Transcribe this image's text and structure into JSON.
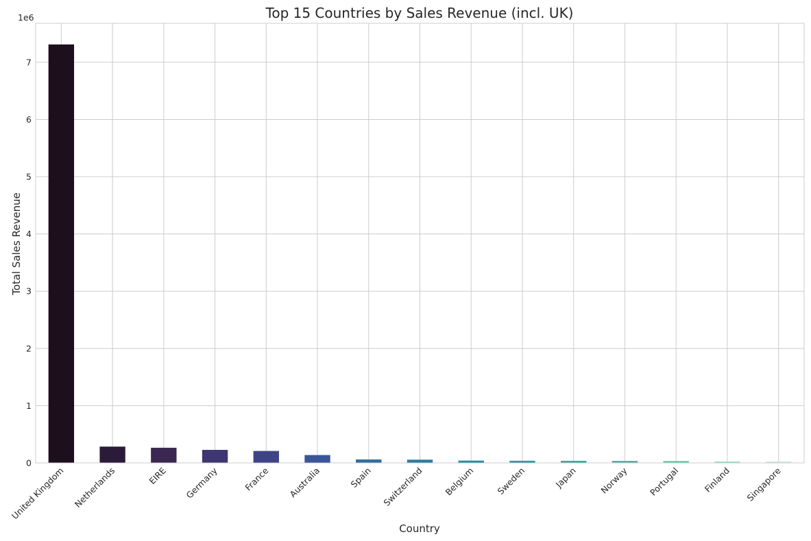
{
  "chart_data": {
    "type": "bar",
    "title": "Top 15 Countries by Sales Revenue (incl. UK)",
    "xlabel": "Country",
    "ylabel": "Total Sales Revenue",
    "y_offset_label": "1e6",
    "ylim": [
      0,
      7.68
    ],
    "y_ticks": [
      0,
      1,
      2,
      3,
      4,
      5,
      6,
      7
    ],
    "grid": true,
    "categories": [
      "United Kingdom",
      "Netherlands",
      "EIRE",
      "Germany",
      "France",
      "Australia",
      "Spain",
      "Switzerland",
      "Belgium",
      "Sweden",
      "Japan",
      "Norway",
      "Portugal",
      "Finland",
      "Singapore"
    ],
    "values": [
      7.31,
      0.285,
      0.265,
      0.228,
      0.209,
      0.138,
      0.061,
      0.057,
      0.041,
      0.038,
      0.037,
      0.036,
      0.033,
      0.023,
      0.021
    ],
    "colors": [
      "#1e0f1e",
      "#2b1b38",
      "#3a2851",
      "#3e3670",
      "#3f4486",
      "#3a5699",
      "#336e9e",
      "#2d7c9f",
      "#2a8c9f",
      "#2b9ca0",
      "#35aaa1",
      "#45b8a3",
      "#68c7a9",
      "#93d7b8",
      "#bfe5cd"
    ]
  }
}
